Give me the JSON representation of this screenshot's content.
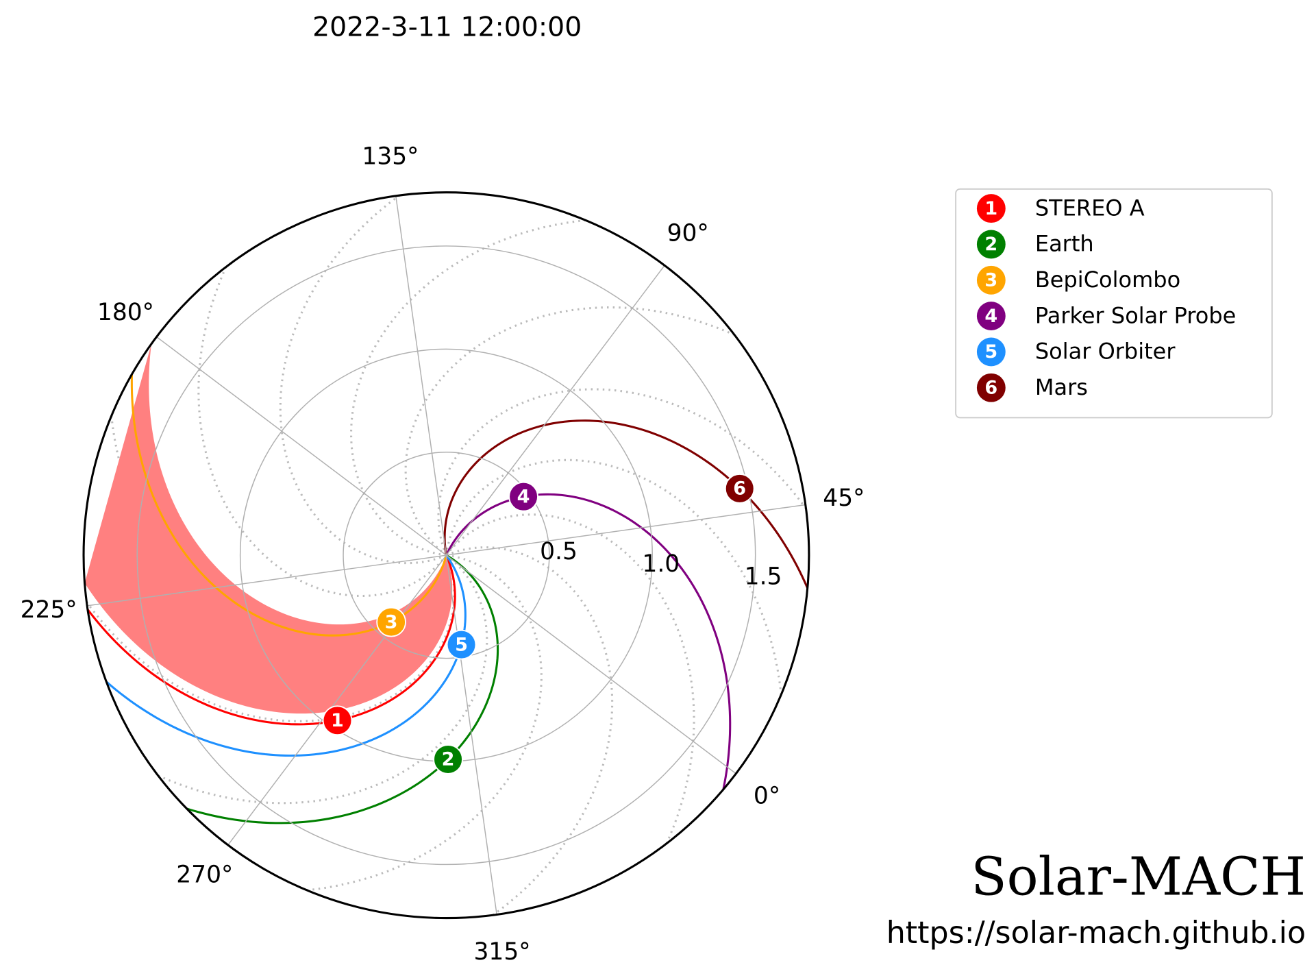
{
  "chart_data": {
    "type": "polar",
    "title": "2022-3-11 12:00:00",
    "rlim": [
      0,
      1.76
    ],
    "rticks": [
      {
        "value": 0.5,
        "label": "0.5"
      },
      {
        "value": 1,
        "label": "1.0"
      },
      {
        "value": 1.5,
        "label": "1.5"
      }
    ],
    "thetaticks": [
      {
        "value": 0,
        "label": "0°"
      },
      {
        "value": 45,
        "label": "45°"
      },
      {
        "value": 90,
        "label": "90°"
      },
      {
        "value": 135,
        "label": "135°"
      },
      {
        "value": 180,
        "label": "180°"
      },
      {
        "value": 225,
        "label": "225°"
      },
      {
        "value": 270,
        "label": "270°"
      },
      {
        "value": 315,
        "label": "315°"
      }
    ],
    "grid": true,
    "long_sector": [
      287,
      327
    ],
    "long_sector_color": "#ff8080",
    "bodies": [
      {
        "label": "1",
        "name": "STEREO A",
        "color": "#ff0000",
        "r": 0.96,
        "lon": 273.6
      },
      {
        "label": "2",
        "name": "Earth",
        "color": "#008000",
        "r": 0.99,
        "lon": 307.5
      },
      {
        "label": "3",
        "name": "BepiColombo",
        "color": "#ffa500",
        "r": 0.42,
        "lon": 267.5
      },
      {
        "label": "4",
        "name": "Parker Solar Probe",
        "color": "#800080",
        "r": 0.47,
        "lon": 74.2
      },
      {
        "label": "5",
        "name": "Solar Orbiter",
        "color": "#1e90ff",
        "r": 0.44,
        "lon": 316.6
      },
      {
        "label": "6",
        "name": "Mars",
        "color": "#800000",
        "r": 1.46,
        "lon": 49.8
      }
    ],
    "legend": "upper right",
    "footer_title": "Solar-MACH",
    "footer_url": "https://solar-mach.github.io"
  }
}
